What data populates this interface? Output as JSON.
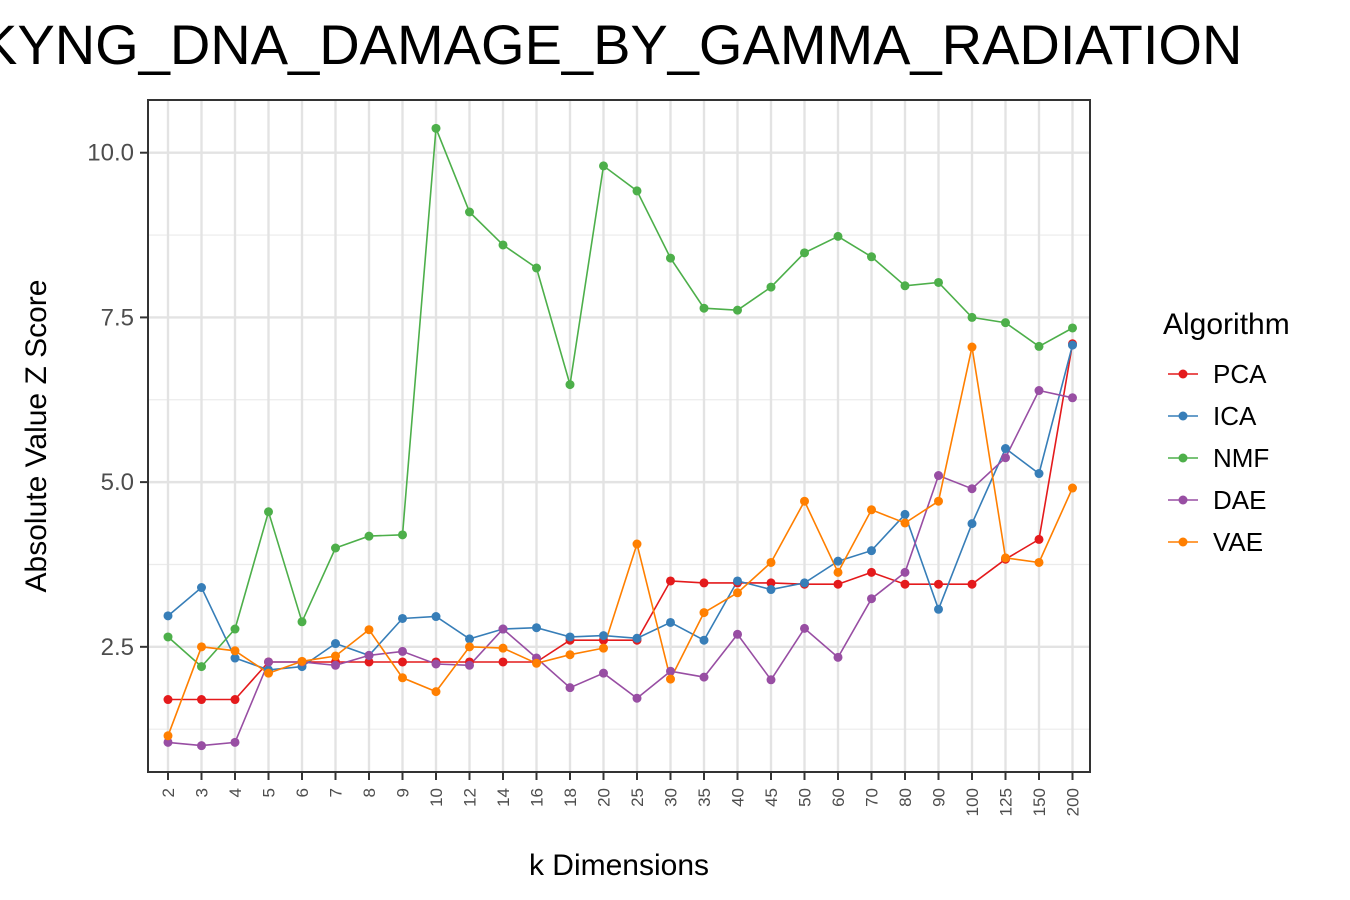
{
  "chart_data": {
    "type": "line",
    "title": "KYNG_DNA_DAMAGE_BY_GAMMA_RADIATION",
    "xlabel": "k Dimensions",
    "ylabel": "Absolute Value Z Score",
    "categories": [
      "2",
      "3",
      "4",
      "5",
      "6",
      "7",
      "8",
      "9",
      "10",
      "12",
      "14",
      "16",
      "18",
      "20",
      "25",
      "30",
      "35",
      "40",
      "45",
      "50",
      "60",
      "70",
      "80",
      "90",
      "100",
      "125",
      "150",
      "200"
    ],
    "yticks": [
      "2.5",
      "5.0",
      "7.5",
      "10.0"
    ],
    "ytick_values": [
      2.5,
      5.0,
      7.5,
      10.0
    ],
    "ylim": [
      0.6,
      10.8
    ],
    "grid": true,
    "legend_title": "Algorithm",
    "legend_position": "right",
    "series": [
      {
        "name": "PCA",
        "color": "#e41a1c",
        "values": [
          1.7,
          1.7,
          1.7,
          2.27,
          2.27,
          2.27,
          2.27,
          2.27,
          2.27,
          2.27,
          2.27,
          2.27,
          2.6,
          2.6,
          2.6,
          3.5,
          3.47,
          3.47,
          3.47,
          3.45,
          3.45,
          3.63,
          3.45,
          3.45,
          3.45,
          3.83,
          4.13,
          7.1
        ]
      },
      {
        "name": "ICA",
        "color": "#377eb8",
        "values": [
          2.97,
          3.4,
          2.33,
          2.15,
          2.2,
          2.55,
          2.37,
          2.93,
          2.96,
          2.62,
          2.77,
          2.79,
          2.65,
          2.67,
          2.63,
          2.87,
          2.6,
          3.5,
          3.37,
          3.47,
          3.8,
          3.96,
          4.51,
          3.07,
          4.37,
          5.51,
          5.13,
          7.08
        ]
      },
      {
        "name": "NMF",
        "color": "#4daf4a",
        "values": [
          2.65,
          2.2,
          2.77,
          4.55,
          2.88,
          4.0,
          4.18,
          4.2,
          10.37,
          9.1,
          8.6,
          8.25,
          6.48,
          9.8,
          9.42,
          8.4,
          7.64,
          7.61,
          7.96,
          8.48,
          8.73,
          8.42,
          7.98,
          8.03,
          7.5,
          7.42,
          7.06,
          7.34
        ]
      },
      {
        "name": "DAE",
        "color": "#984ea3",
        "values": [
          1.05,
          1.0,
          1.05,
          2.27,
          2.27,
          2.22,
          2.37,
          2.43,
          2.24,
          2.22,
          2.77,
          2.33,
          1.88,
          2.1,
          1.72,
          2.13,
          2.04,
          2.69,
          2.0,
          2.78,
          2.34,
          3.23,
          3.63,
          5.1,
          4.9,
          5.37,
          6.39,
          6.28
        ]
      },
      {
        "name": "VAE",
        "color": "#ff7f00",
        "values": [
          1.15,
          2.5,
          2.44,
          2.1,
          2.28,
          2.36,
          2.76,
          2.03,
          1.82,
          2.5,
          2.48,
          2.25,
          2.38,
          2.48,
          4.06,
          2.01,
          3.02,
          3.32,
          3.78,
          4.71,
          3.63,
          4.58,
          4.38,
          4.71,
          7.05,
          3.85,
          3.78,
          4.91
        ]
      }
    ]
  }
}
